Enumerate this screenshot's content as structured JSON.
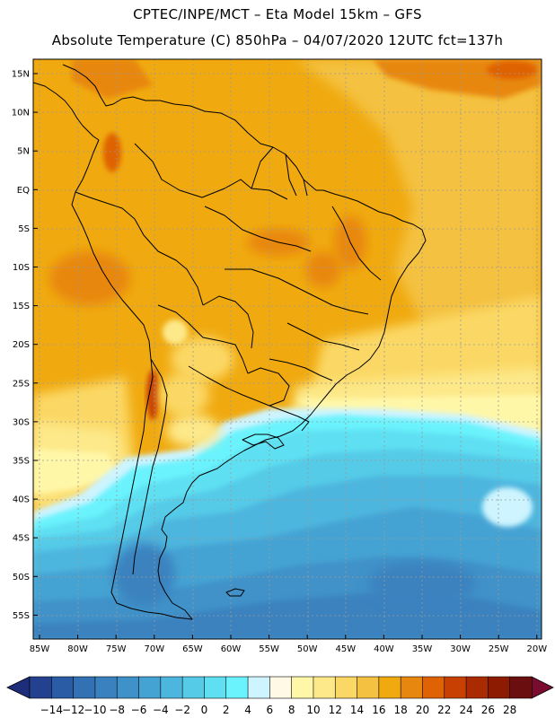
{
  "title_line1": "CPTEC/INPE/MCT –  Eta Model 15km – GFS",
  "title_line2": "Absolute Temperature (C) 850hPa – 04/07/2020 12UTC fct=137h",
  "latitude_labels": [
    "15N",
    "10N",
    "5N",
    "EQ",
    "5S",
    "10S",
    "15S",
    "20S",
    "25S",
    "30S",
    "35S",
    "40S",
    "45S",
    "50S",
    "55S"
  ],
  "longitude_labels": [
    "85W",
    "80W",
    "75W",
    "70W",
    "65W",
    "60W",
    "55W",
    "50W",
    "45W",
    "40W",
    "35W",
    "30W",
    "25W",
    "20W"
  ],
  "colorbar": {
    "labels": [
      "-14",
      "-12",
      "-10",
      "-8",
      "-6",
      "-4",
      "-2",
      "0",
      "2",
      "4",
      "6",
      "8",
      "10",
      "12",
      "14",
      "16",
      "18",
      "20",
      "22",
      "24",
      "26",
      "28"
    ],
    "colors": [
      "#24418f",
      "#2a5ca6",
      "#3271b3",
      "#3a82bf",
      "#3f92c9",
      "#45a3d3",
      "#4db6de",
      "#55cbe8",
      "#5fe0f2",
      "#6bf3fd",
      "#cdf4ff",
      "#fff9e6",
      "#fff7a8",
      "#fde98a",
      "#fbd865",
      "#f4c140",
      "#f0aa10",
      "#e8870f",
      "#df6205",
      "#c84102",
      "#aa2a02",
      "#8c1b02",
      "#6a0e10"
    ],
    "under_color": "#1e2d7a",
    "over_color": "#7a0c30"
  }
}
